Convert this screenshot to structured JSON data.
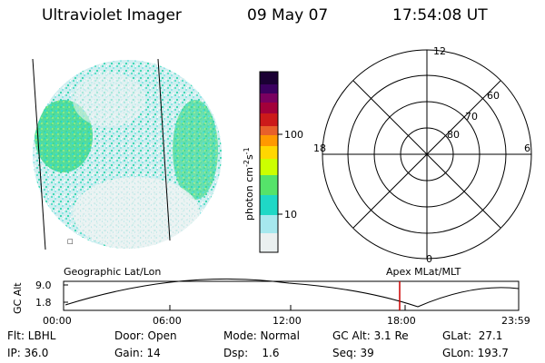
{
  "header": {
    "title": "Ultraviolet Imager",
    "date": "09 May 07",
    "time": "17:54:08 UT"
  },
  "panels": {
    "left_label": "Geographic Lat/Lon",
    "right_label": "Apex MLat/MLT"
  },
  "colorbar": {
    "unit_prefix": "photon cm",
    "unit_exp1": "-2",
    "unit_mid": "s",
    "unit_exp2": "-1",
    "tick_labels": [
      "100",
      "10"
    ],
    "colors_top_to_bottom": [
      "#1a0033",
      "#3b0060",
      "#7a0060",
      "#a3003a",
      "#cc1a1a",
      "#e8602a",
      "#ff9900",
      "#ffd700",
      "#ccff00",
      "#55e36a",
      "#1fd8c6",
      "#a6e8ee",
      "#eaf0f0"
    ]
  },
  "polar": {
    "mlt_labels": {
      "top": "12",
      "bottom": "0",
      "left": "18",
      "right": "6"
    },
    "lat_labels": [
      "60",
      "70",
      "80"
    ]
  },
  "altitude_plot": {
    "y_label": "GC Alt",
    "y_ticks": [
      "9.0",
      "1.8"
    ],
    "x_ticks": [
      "00:00",
      "06:00",
      "12:00",
      "18:00",
      "23:59"
    ],
    "current_time_marker_color": "#cc0000"
  },
  "info": {
    "row1": {
      "flt": "Flt: LBHL",
      "door": "Door: Open",
      "mode": "Mode: Normal",
      "gcalt": "GC Alt: 3.1 Re",
      "glat": "GLat:  27.1"
    },
    "row2": {
      "ip": "IP: 36.0",
      "gain": "Gain: 14",
      "dsp": "Dsp:    1.6",
      "seq": "Seq: 39",
      "glon": "GLon: 193.7"
    }
  }
}
